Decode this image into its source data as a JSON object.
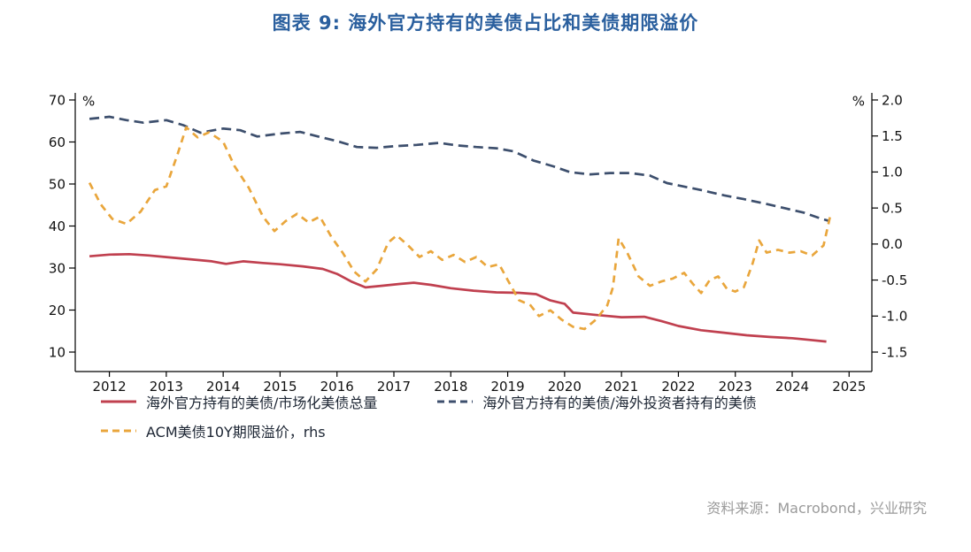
{
  "title": "图表 9: 海外官方持有的美债占比和美债期限溢价",
  "source": "资料来源：Macrobond，兴业研究",
  "colors": {
    "title_blue": "#2a5f9e",
    "source_gray": "#9b9b9b",
    "axis_black": "#000000"
  },
  "chart_data": {
    "type": "line",
    "title": "图表 9: 海外官方持有的美债占比和美债期限溢价",
    "xlabel": "",
    "legend_position": "bottom-left",
    "grid": false,
    "x_range": [
      2011.4,
      2025.4
    ],
    "x_ticks": [
      2012,
      2013,
      2014,
      2015,
      2016,
      2017,
      2018,
      2019,
      2020,
      2021,
      2022,
      2023,
      2024,
      2025
    ],
    "left_axis": {
      "label": "%",
      "range": [
        10,
        70
      ],
      "ticks": [
        70,
        60,
        50,
        40,
        30,
        20,
        10
      ]
    },
    "right_axis": {
      "label": "%",
      "range": [
        -1.5,
        2.0
      ],
      "ticks": [
        "2.0",
        "1.5",
        "1.0",
        "0.5",
        "0.0",
        "-0.5",
        "-1.0",
        "-1.5"
      ]
    },
    "series": [
      {
        "name": "海外官方持有的美债/市场化美债总量",
        "axis": "left",
        "color": "#c0404f",
        "line_style": "solid",
        "points": [
          [
            2011.65,
            32.8
          ],
          [
            2012.0,
            33.2
          ],
          [
            2012.35,
            33.3
          ],
          [
            2012.7,
            33.0
          ],
          [
            2013.0,
            32.6
          ],
          [
            2013.4,
            32.1
          ],
          [
            2013.8,
            31.6
          ],
          [
            2014.05,
            31.0
          ],
          [
            2014.35,
            31.6
          ],
          [
            2014.7,
            31.2
          ],
          [
            2015.0,
            30.9
          ],
          [
            2015.4,
            30.4
          ],
          [
            2015.75,
            29.8
          ],
          [
            2016.0,
            28.6
          ],
          [
            2016.25,
            26.8
          ],
          [
            2016.5,
            25.4
          ],
          [
            2016.8,
            25.8
          ],
          [
            2017.1,
            26.2
          ],
          [
            2017.35,
            26.5
          ],
          [
            2017.65,
            26.0
          ],
          [
            2018.0,
            25.2
          ],
          [
            2018.4,
            24.6
          ],
          [
            2018.8,
            24.2
          ],
          [
            2019.2,
            24.1
          ],
          [
            2019.5,
            23.8
          ],
          [
            2019.75,
            22.3
          ],
          [
            2020.0,
            21.5
          ],
          [
            2020.15,
            19.4
          ],
          [
            2020.5,
            18.9
          ],
          [
            2021.0,
            18.3
          ],
          [
            2021.4,
            18.4
          ],
          [
            2021.7,
            17.4
          ],
          [
            2022.0,
            16.2
          ],
          [
            2022.4,
            15.2
          ],
          [
            2022.8,
            14.6
          ],
          [
            2023.2,
            14.0
          ],
          [
            2023.6,
            13.6
          ],
          [
            2024.0,
            13.3
          ],
          [
            2024.3,
            12.9
          ],
          [
            2024.6,
            12.5
          ]
        ]
      },
      {
        "name": "海外官方持有的美债/海外投资者持有的美债",
        "axis": "left",
        "color": "#3d4f6d",
        "line_style": "dashed",
        "points": [
          [
            2011.65,
            65.5
          ],
          [
            2012.0,
            66.0
          ],
          [
            2012.3,
            65.2
          ],
          [
            2012.6,
            64.6
          ],
          [
            2013.0,
            65.2
          ],
          [
            2013.3,
            64.0
          ],
          [
            2013.6,
            62.2
          ],
          [
            2014.0,
            63.2
          ],
          [
            2014.3,
            62.8
          ],
          [
            2014.6,
            61.3
          ],
          [
            2015.0,
            62.0
          ],
          [
            2015.35,
            62.4
          ],
          [
            2015.7,
            61.2
          ],
          [
            2016.0,
            60.2
          ],
          [
            2016.35,
            58.8
          ],
          [
            2016.7,
            58.6
          ],
          [
            2017.0,
            59.0
          ],
          [
            2017.4,
            59.3
          ],
          [
            2017.8,
            59.8
          ],
          [
            2018.1,
            59.2
          ],
          [
            2018.45,
            58.8
          ],
          [
            2018.8,
            58.5
          ],
          [
            2019.1,
            57.8
          ],
          [
            2019.45,
            55.6
          ],
          [
            2019.8,
            54.2
          ],
          [
            2020.1,
            52.8
          ],
          [
            2020.45,
            52.3
          ],
          [
            2020.8,
            52.6
          ],
          [
            2021.15,
            52.6
          ],
          [
            2021.5,
            52.0
          ],
          [
            2021.8,
            50.2
          ],
          [
            2022.1,
            49.4
          ],
          [
            2022.45,
            48.4
          ],
          [
            2022.8,
            47.3
          ],
          [
            2023.15,
            46.4
          ],
          [
            2023.5,
            45.4
          ],
          [
            2023.85,
            44.3
          ],
          [
            2024.2,
            43.2
          ],
          [
            2024.5,
            41.8
          ],
          [
            2024.65,
            41.2
          ]
        ]
      },
      {
        "name": "ACM美债10Y期限溢价，rhs",
        "axis": "right",
        "color": "#e9a63c",
        "line_style": "dashed",
        "points": [
          [
            2011.65,
            0.85
          ],
          [
            2011.85,
            0.55
          ],
          [
            2012.05,
            0.35
          ],
          [
            2012.3,
            0.28
          ],
          [
            2012.55,
            0.45
          ],
          [
            2012.8,
            0.75
          ],
          [
            2013.0,
            0.8
          ],
          [
            2013.2,
            1.25
          ],
          [
            2013.35,
            1.62
          ],
          [
            2013.55,
            1.48
          ],
          [
            2013.75,
            1.55
          ],
          [
            2014.0,
            1.42
          ],
          [
            2014.2,
            1.08
          ],
          [
            2014.45,
            0.78
          ],
          [
            2014.7,
            0.38
          ],
          [
            2014.9,
            0.18
          ],
          [
            2015.1,
            0.32
          ],
          [
            2015.3,
            0.42
          ],
          [
            2015.5,
            0.3
          ],
          [
            2015.7,
            0.38
          ],
          [
            2015.9,
            0.1
          ],
          [
            2016.1,
            -0.12
          ],
          [
            2016.3,
            -0.38
          ],
          [
            2016.5,
            -0.52
          ],
          [
            2016.7,
            -0.35
          ],
          [
            2016.9,
            0.02
          ],
          [
            2017.05,
            0.12
          ],
          [
            2017.25,
            -0.02
          ],
          [
            2017.45,
            -0.18
          ],
          [
            2017.65,
            -0.1
          ],
          [
            2017.85,
            -0.22
          ],
          [
            2018.05,
            -0.15
          ],
          [
            2018.25,
            -0.25
          ],
          [
            2018.45,
            -0.18
          ],
          [
            2018.65,
            -0.32
          ],
          [
            2018.85,
            -0.28
          ],
          [
            2019.0,
            -0.5
          ],
          [
            2019.2,
            -0.78
          ],
          [
            2019.4,
            -0.85
          ],
          [
            2019.55,
            -1.0
          ],
          [
            2019.75,
            -0.92
          ],
          [
            2019.95,
            -1.05
          ],
          [
            2020.15,
            -1.15
          ],
          [
            2020.35,
            -1.18
          ],
          [
            2020.55,
            -1.05
          ],
          [
            2020.75,
            -0.85
          ],
          [
            2020.85,
            -0.6
          ],
          [
            2020.95,
            0.08
          ],
          [
            2021.1,
            -0.12
          ],
          [
            2021.3,
            -0.45
          ],
          [
            2021.5,
            -0.58
          ],
          [
            2021.7,
            -0.52
          ],
          [
            2021.9,
            -0.48
          ],
          [
            2022.1,
            -0.4
          ],
          [
            2022.25,
            -0.55
          ],
          [
            2022.4,
            -0.68
          ],
          [
            2022.55,
            -0.5
          ],
          [
            2022.7,
            -0.45
          ],
          [
            2022.85,
            -0.62
          ],
          [
            2023.0,
            -0.66
          ],
          [
            2023.15,
            -0.6
          ],
          [
            2023.3,
            -0.28
          ],
          [
            2023.42,
            0.05
          ],
          [
            2023.55,
            -0.12
          ],
          [
            2023.75,
            -0.08
          ],
          [
            2023.95,
            -0.12
          ],
          [
            2024.15,
            -0.1
          ],
          [
            2024.35,
            -0.16
          ],
          [
            2024.55,
            -0.02
          ],
          [
            2024.68,
            0.43
          ]
        ]
      }
    ]
  }
}
